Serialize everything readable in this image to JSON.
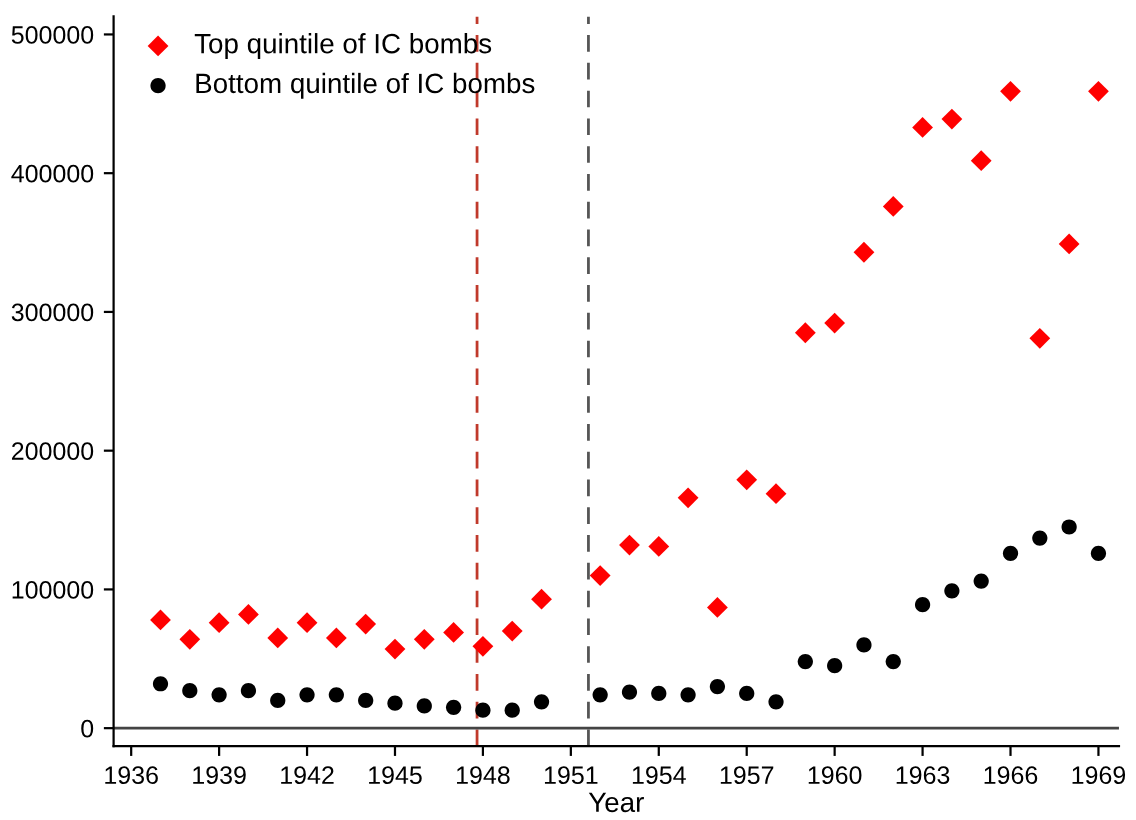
{
  "chart_data": {
    "type": "scatter",
    "xlabel": "Year",
    "x": [
      1937,
      1938,
      1939,
      1940,
      1941,
      1942,
      1943,
      1944,
      1945,
      1946,
      1947,
      1948,
      1949,
      1950,
      1952,
      1953,
      1954,
      1955,
      1956,
      1957,
      1958,
      1959,
      1960,
      1961,
      1962,
      1963,
      1964,
      1965,
      1966,
      1967,
      1968,
      1969
    ],
    "series": [
      {
        "name": "Top quintile of IC bombs",
        "color": "#ff0000",
        "marker": "diamond",
        "values": [
          78000,
          64000,
          76000,
          82000,
          65000,
          76000,
          65000,
          75000,
          57000,
          64000,
          69000,
          59000,
          70000,
          93000,
          110000,
          132000,
          131000,
          166000,
          87000,
          179000,
          169000,
          285000,
          292000,
          343000,
          376000,
          433000,
          439000,
          409000,
          459000,
          281000,
          349000,
          459000
        ]
      },
      {
        "name": "Bottom quintile of IC bombs",
        "color": "#000000",
        "marker": "circle",
        "values": [
          32000,
          27000,
          24000,
          27000,
          20000,
          24000,
          24000,
          20000,
          18000,
          16000,
          15000,
          13000,
          13000,
          19000,
          24000,
          26000,
          25000,
          24000,
          30000,
          25000,
          19000,
          48000,
          45000,
          60000,
          48000,
          89000,
          99000,
          106000,
          126000,
          137000,
          145000,
          126000
        ]
      }
    ],
    "xlim": [
      1935.4,
      1969.7
    ],
    "xticks": [
      1936,
      1939,
      1942,
      1945,
      1948,
      1951,
      1954,
      1957,
      1960,
      1963,
      1966,
      1969
    ],
    "ylim": [
      -13000,
      513000
    ],
    "yticks": [
      0,
      100000,
      200000,
      300000,
      400000,
      500000
    ],
    "ref_lines": [
      {
        "axis": "x",
        "value": 1947.8,
        "color": "#c0392b",
        "line_style": "dashed"
      },
      {
        "axis": "x",
        "value": 1951.6,
        "color": "#555555",
        "line_style": "dashed"
      },
      {
        "axis": "y",
        "value": 0,
        "color": "#444444",
        "line_style": "solid"
      }
    ],
    "grid": false,
    "legend": "top left"
  }
}
